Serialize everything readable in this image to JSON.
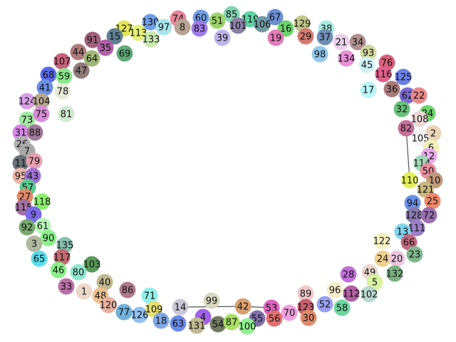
{
  "nodes": [
    {
      "id": "74",
      "color": "#e8879a"
    },
    {
      "id": "60",
      "color": "#6f9ee8"
    },
    {
      "id": "85",
      "color": "#84d4b4"
    },
    {
      "id": "119",
      "color": "#5fd4a4"
    },
    {
      "id": "67",
      "color": "#6b8fd2"
    },
    {
      "id": "130",
      "color": "#6f9ee8"
    },
    {
      "id": "97",
      "color": "#a8e4ec"
    },
    {
      "id": "8",
      "color": "#b8a494"
    },
    {
      "id": "83",
      "color": "#a07ae8"
    },
    {
      "id": "51",
      "color": "#9cd46a"
    },
    {
      "id": "101",
      "color": "#8b7fa8"
    },
    {
      "id": "106",
      "color": "#6e9aa4"
    },
    {
      "id": "16",
      "color": "#6ad46a"
    },
    {
      "id": "129",
      "color": "#c0c888"
    },
    {
      "id": "127",
      "color": "#e4e45a"
    },
    {
      "id": "113",
      "color": "#e4f07a"
    },
    {
      "id": "133",
      "color": "#c8ecb0"
    },
    {
      "id": "39",
      "color": "#c0b4ec"
    },
    {
      "id": "19",
      "color": "#e47ab8"
    },
    {
      "id": "29",
      "color": "#d47a72"
    },
    {
      "id": "38",
      "color": "#a8ece0"
    },
    {
      "id": "37",
      "color": "#6f8fb4"
    },
    {
      "id": "15",
      "color": "#5f7f94"
    },
    {
      "id": "91",
      "color": "#a0607a"
    },
    {
      "id": "35",
      "color": "#b060a8"
    },
    {
      "id": "69",
      "color": "#5faa78"
    },
    {
      "id": "21",
      "color": "#ecd0ec"
    },
    {
      "id": "34",
      "color": "#b08f8f"
    },
    {
      "id": "93",
      "color": "#d0d8a0"
    },
    {
      "id": "44",
      "color": "#b07a7a"
    },
    {
      "id": "64",
      "color": "#a0b878"
    },
    {
      "id": "107",
      "color": "#c8607a"
    },
    {
      "id": "134",
      "color": "#e890d8"
    },
    {
      "id": "45",
      "color": "#d0f4f8"
    },
    {
      "id": "98",
      "color": "#90c8ec"
    },
    {
      "id": "76",
      "color": "#d8607a"
    },
    {
      "id": "47",
      "color": "#8f7a7a"
    },
    {
      "id": "68",
      "color": "#5a6ae8"
    },
    {
      "id": "59",
      "color": "#8ae88a"
    },
    {
      "id": "116",
      "color": "#e0608a"
    },
    {
      "id": "125",
      "color": "#6a80e8"
    },
    {
      "id": "41",
      "color": "#6a90e8"
    },
    {
      "id": "78",
      "color": "#e4ecd8"
    },
    {
      "id": "17",
      "color": "#b8f4f8"
    },
    {
      "id": "36",
      "color": "#a87a7a"
    },
    {
      "id": "62",
      "color": "#7a6ad8"
    },
    {
      "id": "22",
      "color": "#e88a8a"
    },
    {
      "id": "124",
      "color": "#d8a0e8"
    },
    {
      "id": "104",
      "color": "#b8a890"
    },
    {
      "id": "32",
      "color": "#6ac07a"
    },
    {
      "id": "84",
      "color": "#6ad46a"
    },
    {
      "id": "73",
      "color": "#a0e8a0"
    },
    {
      "id": "75",
      "color": "#d88ad8"
    },
    {
      "id": "81",
      "color": "#d0ecd0"
    },
    {
      "id": "108",
      "color": "#ecd8d8"
    },
    {
      "id": "82",
      "color": "#c8709a"
    },
    {
      "id": "31",
      "color": "#d888e8"
    },
    {
      "id": "88",
      "color": "#a07a9a"
    },
    {
      "id": "2",
      "color": "#ecd4b8"
    },
    {
      "id": "105",
      "color": "#f4f4f4"
    },
    {
      "id": "26",
      "color": "#b0b0b0"
    },
    {
      "id": "7",
      "color": "#a8a8a8"
    },
    {
      "id": "6",
      "color": "#f0f0b8"
    },
    {
      "id": "12",
      "color": "#e8a8e8"
    },
    {
      "id": "114",
      "color": "#a0d8b8"
    },
    {
      "id": "11",
      "color": "#687078"
    },
    {
      "id": "79",
      "color": "#e8a0b0"
    },
    {
      "id": "50",
      "color": "#e890a0"
    },
    {
      "id": "95",
      "color": "#ecb8a8"
    },
    {
      "id": "43",
      "color": "#a070d8"
    },
    {
      "id": "10",
      "color": "#c0987a"
    },
    {
      "id": "110",
      "color": "#e4f05a"
    },
    {
      "id": "57",
      "color": "#5ac890"
    },
    {
      "id": "121",
      "color": "#c8b880"
    },
    {
      "id": "27",
      "color": "#e08a6a"
    },
    {
      "id": "118",
      "color": "#8af06a"
    },
    {
      "id": "25",
      "color": "#f08a6a"
    },
    {
      "id": "94",
      "color": "#6a90e8"
    },
    {
      "id": "115",
      "color": "#a070a0"
    },
    {
      "id": "9",
      "color": "#7a6ae8"
    },
    {
      "id": "128",
      "color": "#8a7ab0"
    },
    {
      "id": "72",
      "color": "#9a70b0"
    },
    {
      "id": "61",
      "color": "#b8f4b8"
    },
    {
      "id": "92",
      "color": "#78a870"
    },
    {
      "id": "111",
      "color": "#9a80c8"
    },
    {
      "id": "13",
      "color": "#80d4ec"
    },
    {
      "id": "90",
      "color": "#8af08a"
    },
    {
      "id": "3",
      "color": "#b0b8a0"
    },
    {
      "id": "135",
      "color": "#88c0b0"
    },
    {
      "id": "122",
      "color": "#f4f0c0"
    },
    {
      "id": "66",
      "color": "#c06a80"
    },
    {
      "id": "23",
      "color": "#80b890"
    },
    {
      "id": "117",
      "color": "#c06a70"
    },
    {
      "id": "65",
      "color": "#5adcec"
    },
    {
      "id": "24",
      "color": "#f0d090"
    },
    {
      "id": "20",
      "color": "#ecc8e0"
    },
    {
      "id": "103",
      "color": "#5a9a5a"
    },
    {
      "id": "46",
      "color": "#8af08a"
    },
    {
      "id": "80",
      "color": "#90e8d0"
    },
    {
      "id": "49",
      "color": "#ecd8d0"
    },
    {
      "id": "132",
      "color": "#7ab080"
    },
    {
      "id": "28",
      "color": "#c070d8"
    },
    {
      "id": "5",
      "color": "#d8f4a0"
    },
    {
      "id": "40",
      "color": "#c0b890"
    },
    {
      "id": "33",
      "color": "#b870a8"
    },
    {
      "id": "1",
      "color": "#ecd8c8"
    },
    {
      "id": "102",
      "color": "#b8d8d0"
    },
    {
      "id": "96",
      "color": "#f4ecc8"
    },
    {
      "id": "112",
      "color": "#b060a0"
    },
    {
      "id": "86",
      "color": "#b07a8a"
    },
    {
      "id": "48",
      "color": "#f0c090"
    },
    {
      "id": "89",
      "color": "#f0c8c8"
    },
    {
      "id": "71",
      "color": "#90f0e8"
    },
    {
      "id": "120",
      "color": "#e8b0a0"
    },
    {
      "id": "52",
      "color": "#9aa0f0"
    },
    {
      "id": "58",
      "color": "#6ad8a0"
    },
    {
      "id": "77",
      "color": "#70b0d8"
    },
    {
      "id": "126",
      "color": "#90c0f0"
    },
    {
      "id": "14",
      "color": "#c8c8d8"
    },
    {
      "id": "99",
      "color": "#d8d8c0"
    },
    {
      "id": "42",
      "color": "#d8a070"
    },
    {
      "id": "53",
      "color": "#e060c0"
    },
    {
      "id": "123",
      "color": "#c86070"
    },
    {
      "id": "109",
      "color": "#e8e070"
    },
    {
      "id": "18",
      "color": "#80a8e8"
    },
    {
      "id": "4",
      "color": "#a060e8"
    },
    {
      "id": "70",
      "color": "#f0a0e0"
    },
    {
      "id": "63",
      "color": "#6a8ae8"
    },
    {
      "id": "131",
      "color": "#c0b890"
    },
    {
      "id": "54",
      "color": "#707a60"
    },
    {
      "id": "87",
      "color": "#a8e060"
    },
    {
      "id": "55",
      "color": "#8070a8"
    },
    {
      "id": "56",
      "color": "#e07070"
    },
    {
      "id": "30",
      "color": "#e08a6a"
    },
    {
      "id": "100",
      "color": "#90f090"
    }
  ],
  "edges": [
    {
      "from": "82",
      "to": "110"
    },
    {
      "from": "14",
      "to": "42"
    },
    {
      "from": "42",
      "to": "53"
    }
  ]
}
